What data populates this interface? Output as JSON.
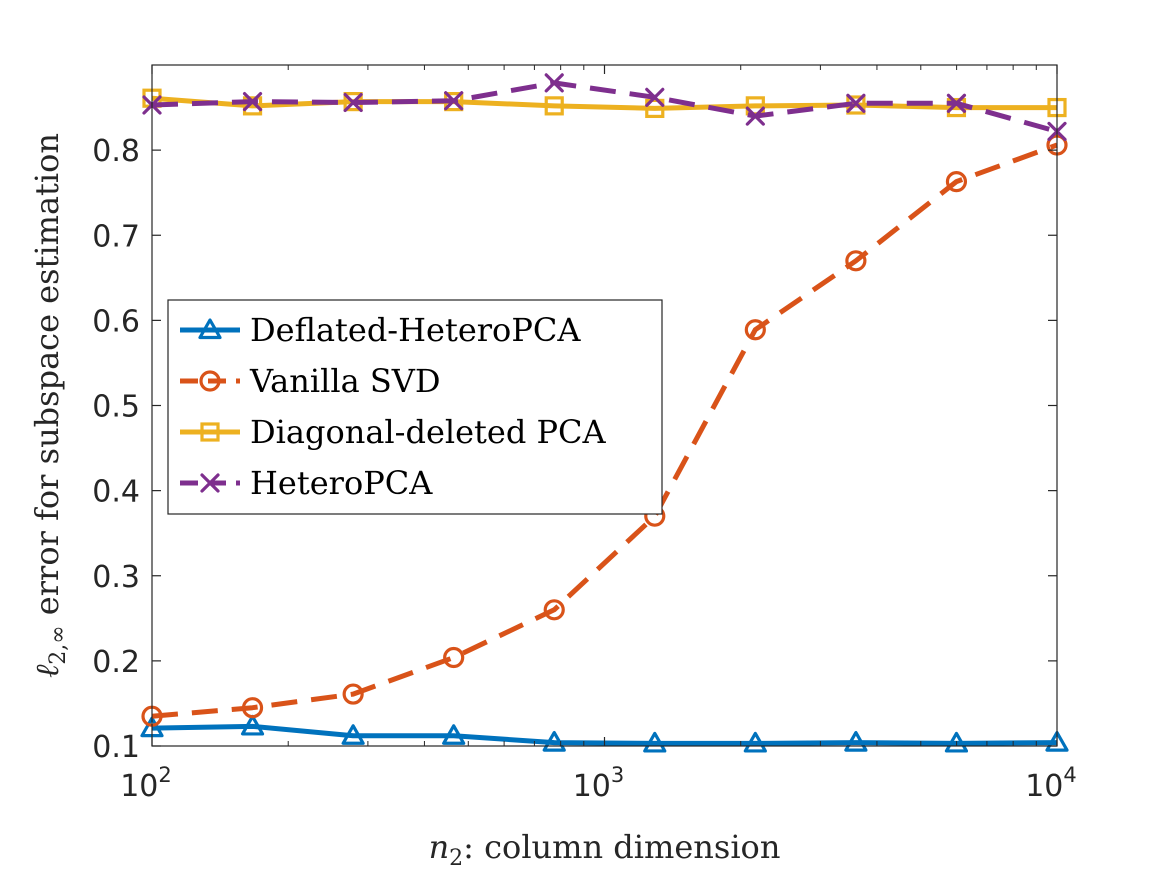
{
  "chart_data": {
    "type": "line",
    "xscale": "log",
    "xlim": [
      100,
      10000
    ],
    "ylim": [
      0.1,
      0.9
    ],
    "xticks": [
      {
        "value": 100,
        "base": "10",
        "exp": "2"
      },
      {
        "value": 1000,
        "base": "10",
        "exp": "3"
      },
      {
        "value": 10000,
        "base": "10",
        "exp": "4"
      }
    ],
    "yticks": [
      {
        "value": 0.1,
        "label": "0.1"
      },
      {
        "value": 0.2,
        "label": "0.2"
      },
      {
        "value": 0.3,
        "label": "0.3"
      },
      {
        "value": 0.4,
        "label": "0.4"
      },
      {
        "value": 0.5,
        "label": "0.5"
      },
      {
        "value": 0.6,
        "label": "0.6"
      },
      {
        "value": 0.7,
        "label": "0.7"
      },
      {
        "value": 0.8,
        "label": "0.8"
      }
    ],
    "xlabel": {
      "var": "n",
      "sub": "2",
      "rest": ": column dimension"
    },
    "ylabel": {
      "var": "ℓ",
      "sub": "2,∞",
      "rest": " error for subspace estimation"
    },
    "legend_position": "center-left",
    "x": [
      100,
      166.8,
      278.3,
      464.2,
      774.3,
      1291.5,
      2154.4,
      3593.8,
      5994.8,
      10000
    ],
    "series": [
      {
        "name": "Deflated-HeteroPCA",
        "color": "#0072BD",
        "dash": "solid",
        "marker": "triangle",
        "values": [
          0.121,
          0.123,
          0.112,
          0.112,
          0.104,
          0.103,
          0.103,
          0.104,
          0.103,
          0.104
        ]
      },
      {
        "name": "Vanilla SVD",
        "color": "#D95319",
        "dash": "dashed",
        "marker": "circle",
        "values": [
          0.135,
          0.145,
          0.161,
          0.204,
          0.26,
          0.37,
          0.589,
          0.67,
          0.763,
          0.806
        ]
      },
      {
        "name": "Diagonal-deleted PCA",
        "color": "#EDB120",
        "dash": "solid",
        "marker": "square",
        "values": [
          0.861,
          0.852,
          0.857,
          0.857,
          0.852,
          0.849,
          0.852,
          0.853,
          0.85,
          0.85
        ]
      },
      {
        "name": "HeteroPCA",
        "color": "#7E2F8E",
        "dash": "dashed",
        "marker": "x",
        "values": [
          0.853,
          0.857,
          0.856,
          0.858,
          0.879,
          0.862,
          0.84,
          0.855,
          0.855,
          0.822
        ]
      }
    ]
  }
}
